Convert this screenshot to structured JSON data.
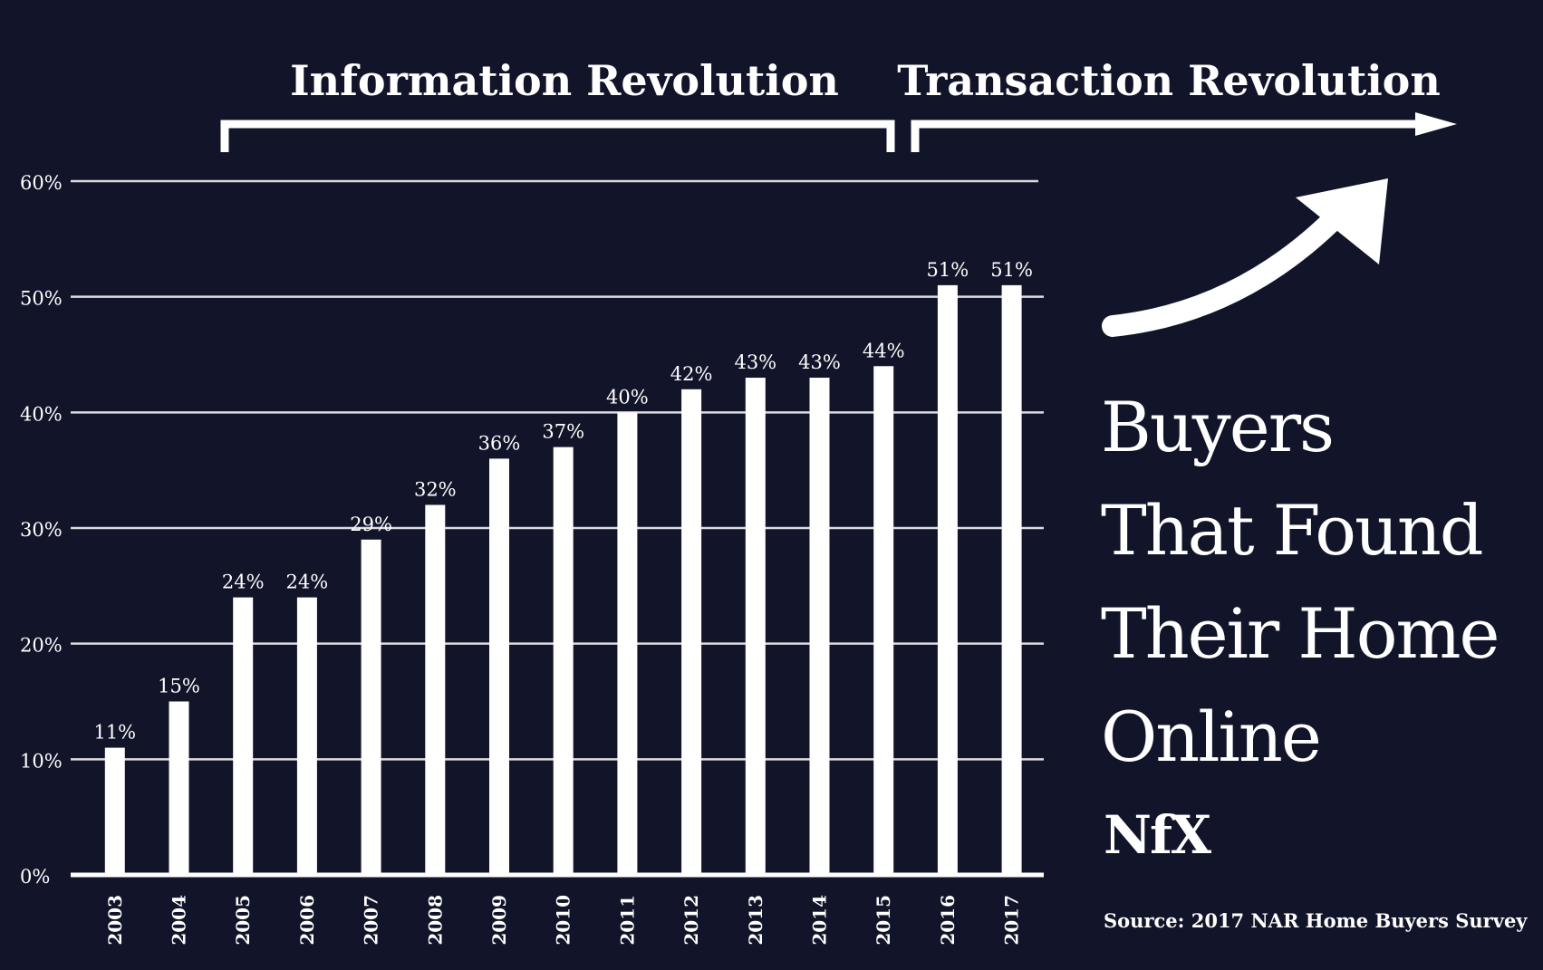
{
  "chart_data": {
    "type": "bar",
    "categories": [
      "2003",
      "2004",
      "2005",
      "2006",
      "2007",
      "2008",
      "2009",
      "2010",
      "2011",
      "2012",
      "2013",
      "2014",
      "2015",
      "2016",
      "2017"
    ],
    "values": [
      11,
      15,
      24,
      24,
      29,
      32,
      36,
      37,
      40,
      42,
      43,
      43,
      44,
      51,
      51
    ],
    "value_labels": [
      "11%",
      "15%",
      "24%",
      "24%",
      "29%",
      "32%",
      "36%",
      "37%",
      "40%",
      "42%",
      "43%",
      "43%",
      "44%",
      "51%",
      "51%"
    ],
    "y_ticks": [
      0,
      10,
      20,
      30,
      40,
      50,
      60
    ],
    "y_tick_labels": [
      "0%",
      "10%",
      "20%",
      "30%",
      "40%",
      "50%",
      "60%"
    ],
    "ylim": [
      0,
      60
    ],
    "grid": true,
    "period_labels": [
      "Information Revolution",
      "Transaction Revolution"
    ],
    "title_lines": [
      "Buyers",
      "That Found",
      "Their Home",
      "Online"
    ],
    "logo_text": "NfX",
    "source": "Source: 2017 NAR Home Buyers Survey",
    "colors": {
      "background": "#12142a",
      "bar": "#ffffff",
      "grid": "#ffffff",
      "text": "#ffffff"
    }
  }
}
